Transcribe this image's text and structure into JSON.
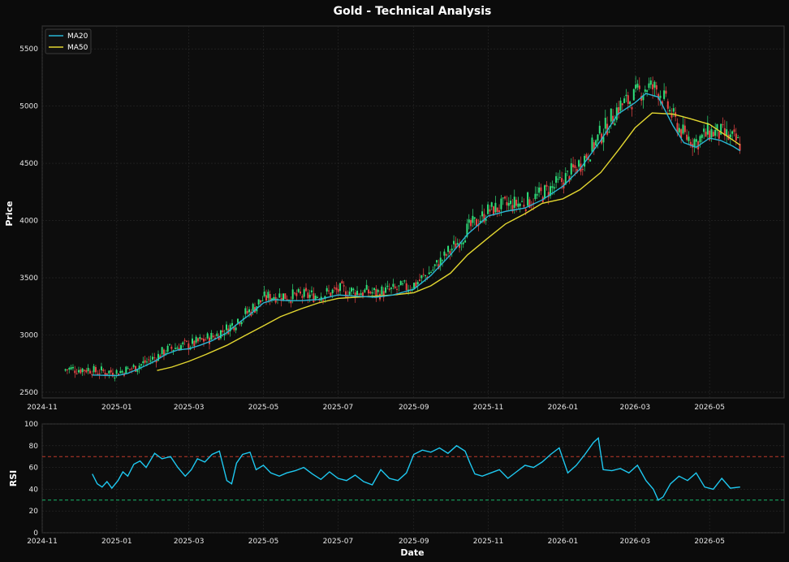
{
  "figure": {
    "title": "Gold - Technical Analysis"
  },
  "colors": {
    "background": "#0b0b0b",
    "panel": "#0d0d0d",
    "grid": "#2a2a2a",
    "up": "#2ee07a",
    "down": "#e84545",
    "ma20": "#29b6d6",
    "ma50": "#e2d630",
    "rsi": "#1ec8f0",
    "overbought": "#c0392b",
    "oversold": "#16b86a"
  },
  "chart_data": [
    {
      "type": "candlestick",
      "title": "Gold - Technical Analysis",
      "xlabel": "",
      "ylabel": "Price",
      "xlim": [
        "2024-11-01",
        "2026-07-01"
      ],
      "ylim": [
        2450,
        5700
      ],
      "x_ticks": [
        "2024-11",
        "2025-01",
        "2025-03",
        "2025-05",
        "2025-07",
        "2025-09",
        "2025-11",
        "2026-01",
        "2026-03",
        "2026-05"
      ],
      "y_ticks": [
        2500,
        3000,
        3500,
        4000,
        4500,
        5000,
        5500
      ],
      "legend_position": "top-left",
      "grid": true,
      "series": [
        {
          "name": "MA20",
          "x": [
            "2024-12-12",
            "2024-12-20",
            "2025-01-01",
            "2025-01-10",
            "2025-01-20",
            "2025-02-01",
            "2025-02-10",
            "2025-02-20",
            "2025-03-01",
            "2025-03-10",
            "2025-03-20",
            "2025-04-01",
            "2025-04-10",
            "2025-04-20",
            "2025-05-01",
            "2025-05-10",
            "2025-05-20",
            "2025-06-01",
            "2025-06-15",
            "2025-07-01",
            "2025-07-15",
            "2025-08-01",
            "2025-08-15",
            "2025-09-01",
            "2025-09-15",
            "2025-10-01",
            "2025-10-15",
            "2025-11-01",
            "2025-11-15",
            "2025-12-01",
            "2025-12-15",
            "2026-01-01",
            "2026-01-15",
            "2026-02-01",
            "2026-02-15",
            "2026-03-01",
            "2026-03-10",
            "2026-03-20",
            "2026-04-01",
            "2026-04-10",
            "2026-04-20",
            "2026-05-01",
            "2026-05-10",
            "2026-05-20",
            "2026-05-26"
          ],
          "values": [
            2650,
            2648,
            2645,
            2665,
            2710,
            2770,
            2830,
            2870,
            2880,
            2910,
            2950,
            3020,
            3100,
            3180,
            3280,
            3310,
            3300,
            3300,
            3310,
            3350,
            3340,
            3330,
            3350,
            3400,
            3520,
            3700,
            3880,
            4040,
            4080,
            4110,
            4180,
            4300,
            4450,
            4700,
            4930,
            5030,
            5110,
            5080,
            4830,
            4680,
            4640,
            4720,
            4700,
            4650,
            4610
          ]
        },
        {
          "name": "MA50",
          "x": [
            "2025-02-03",
            "2025-02-15",
            "2025-03-01",
            "2025-03-15",
            "2025-04-01",
            "2025-04-15",
            "2025-05-01",
            "2025-05-15",
            "2025-06-01",
            "2025-06-15",
            "2025-07-01",
            "2025-07-15",
            "2025-08-01",
            "2025-08-15",
            "2025-09-01",
            "2025-09-15",
            "2025-10-01",
            "2025-10-15",
            "2025-11-01",
            "2025-11-15",
            "2025-12-01",
            "2025-12-15",
            "2026-01-01",
            "2026-01-15",
            "2026-02-01",
            "2026-02-15",
            "2026-03-01",
            "2026-03-15",
            "2026-04-01",
            "2026-04-15",
            "2026-05-01",
            "2026-05-15",
            "2026-05-26"
          ],
          "values": [
            2690,
            2720,
            2770,
            2830,
            2910,
            2990,
            3080,
            3160,
            3230,
            3280,
            3320,
            3330,
            3340,
            3350,
            3370,
            3430,
            3540,
            3700,
            3850,
            3970,
            4060,
            4150,
            4190,
            4270,
            4420,
            4610,
            4810,
            4940,
            4930,
            4890,
            4840,
            4740,
            4660
          ]
        }
      ]
    },
    {
      "type": "line",
      "title": "",
      "xlabel": "Date",
      "ylabel": "RSI",
      "xlim": [
        "2024-11-01",
        "2026-07-01"
      ],
      "ylim": [
        0,
        100
      ],
      "x_ticks": [
        "2024-11",
        "2025-01",
        "2025-03",
        "2025-05",
        "2025-07",
        "2025-09",
        "2025-11",
        "2026-01",
        "2026-03",
        "2026-05"
      ],
      "y_ticks": [
        0,
        20,
        40,
        60,
        80,
        100
      ],
      "grid": true,
      "reference_lines": [
        70,
        30
      ],
      "series": [
        {
          "name": "RSI",
          "x": [
            "2024-12-12",
            "2024-12-16",
            "2024-12-20",
            "2024-12-24",
            "2024-12-28",
            "2025-01-02",
            "2025-01-06",
            "2025-01-10",
            "2025-01-15",
            "2025-01-20",
            "2025-01-25",
            "2025-02-01",
            "2025-02-07",
            "2025-02-14",
            "2025-02-20",
            "2025-02-26",
            "2025-03-03",
            "2025-03-08",
            "2025-03-14",
            "2025-03-20",
            "2025-03-26",
            "2025-04-01",
            "2025-04-05",
            "2025-04-09",
            "2025-04-14",
            "2025-04-20",
            "2025-04-25",
            "2025-05-01",
            "2025-05-07",
            "2025-05-14",
            "2025-05-20",
            "2025-05-27",
            "2025-06-03",
            "2025-06-10",
            "2025-06-17",
            "2025-06-24",
            "2025-07-01",
            "2025-07-08",
            "2025-07-15",
            "2025-07-22",
            "2025-07-29",
            "2025-08-05",
            "2025-08-12",
            "2025-08-19",
            "2025-08-26",
            "2025-09-01",
            "2025-09-08",
            "2025-09-15",
            "2025-09-22",
            "2025-09-29",
            "2025-10-06",
            "2025-10-13",
            "2025-10-17",
            "2025-10-21",
            "2025-10-27",
            "2025-11-03",
            "2025-11-10",
            "2025-11-17",
            "2025-11-24",
            "2025-12-01",
            "2025-12-08",
            "2025-12-15",
            "2025-12-22",
            "2025-12-29",
            "2026-01-05",
            "2026-01-12",
            "2026-01-19",
            "2026-01-26",
            "2026-01-30",
            "2026-02-03",
            "2026-02-10",
            "2026-02-17",
            "2026-02-24",
            "2026-03-03",
            "2026-03-10",
            "2026-03-16",
            "2026-03-20",
            "2026-03-24",
            "2026-03-30",
            "2026-04-06",
            "2026-04-13",
            "2026-04-20",
            "2026-04-27",
            "2026-05-04",
            "2026-05-11",
            "2026-05-18",
            "2026-05-26"
          ],
          "values": [
            54,
            45,
            42,
            47,
            41,
            48,
            56,
            52,
            63,
            66,
            60,
            73,
            68,
            70,
            60,
            52,
            58,
            68,
            65,
            72,
            75,
            48,
            45,
            64,
            72,
            74,
            58,
            62,
            55,
            52,
            55,
            57,
            60,
            54,
            49,
            56,
            50,
            48,
            53,
            47,
            44,
            58,
            50,
            48,
            55,
            72,
            76,
            74,
            78,
            73,
            80,
            75,
            64,
            54,
            52,
            55,
            58,
            50,
            56,
            62,
            60,
            65,
            72,
            78,
            55,
            62,
            72,
            83,
            87,
            58,
            57,
            59,
            55,
            62,
            48,
            40,
            30,
            33,
            45,
            52,
            48,
            55,
            42,
            40,
            50,
            41,
            42
          ]
        }
      ]
    }
  ]
}
